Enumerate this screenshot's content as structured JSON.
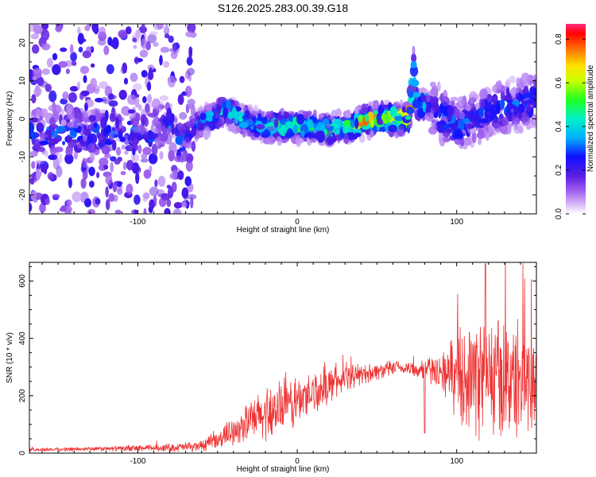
{
  "title": "S126.2025.283.00.39.G18",
  "chart_data": [
    {
      "type": "heatmap",
      "name": "spectrogram",
      "xlabel": "Height of straight line (km)",
      "ylabel": "Frequency (Hz)",
      "xlim": [
        -168,
        150
      ],
      "ylim": [
        -25,
        25
      ],
      "xticks": [
        -100,
        0,
        100
      ],
      "yticks": [
        -20,
        -10,
        0,
        10,
        20
      ],
      "colorbar": {
        "label": "Normalized spectral amplitude",
        "range": [
          0.0,
          0.87
        ],
        "ticks": [
          "0.0",
          "0.2",
          "0.4",
          "0.6",
          "0.8"
        ]
      },
      "ridge": {
        "x": [
          -115,
          -100,
          -90,
          -80,
          -72,
          -68,
          -60,
          -50,
          -45,
          -40,
          -30,
          -20,
          -10,
          0,
          10,
          20,
          30,
          40,
          50,
          60,
          65,
          70,
          71,
          73,
          74,
          76,
          80,
          90,
          100,
          110,
          120,
          130,
          140,
          150
        ],
        "freq": [
          -4,
          -4,
          -3,
          -1,
          -8,
          -2,
          -1,
          1,
          3,
          1,
          -1,
          -2,
          -2,
          -2,
          -2,
          -3,
          -2,
          -1,
          0,
          0,
          0,
          0,
          4,
          14,
          6,
          3,
          4,
          1,
          -2,
          0,
          2,
          3,
          4,
          5
        ]
      }
    },
    {
      "type": "line",
      "name": "snr",
      "xlabel": "Height of straight line (km)",
      "ylabel": "SNR (10 * v/v)",
      "xlim": [
        -168,
        150
      ],
      "ylim": [
        0,
        665
      ],
      "xticks": [
        -100,
        0,
        100
      ],
      "yticks": [
        0,
        200,
        400,
        600
      ],
      "color": "#ee3333",
      "envelope": {
        "x": [
          -168,
          -120,
          -90,
          -75,
          -60,
          -50,
          -40,
          -30,
          -20,
          -10,
          0,
          10,
          20,
          30,
          40,
          50,
          60,
          70,
          80,
          90,
          95,
          100,
          110,
          120,
          130,
          140,
          150
        ],
        "mean": [
          12,
          15,
          18,
          20,
          25,
          45,
          80,
          110,
          135,
          160,
          180,
          210,
          240,
          260,
          275,
          285,
          295,
          295,
          290,
          285,
          280,
          275,
          270,
          265,
          260,
          255,
          250
        ],
        "spread": [
          6,
          8,
          12,
          15,
          20,
          30,
          45,
          70,
          90,
          95,
          90,
          80,
          60,
          45,
          35,
          30,
          25,
          25,
          40,
          60,
          100,
          150,
          190,
          220,
          210,
          200,
          190
        ]
      }
    }
  ]
}
